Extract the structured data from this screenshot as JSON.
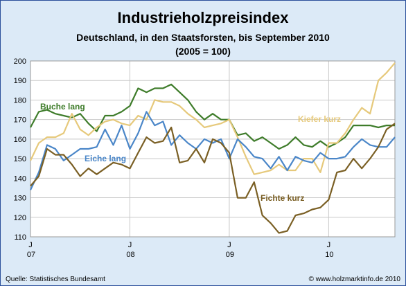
{
  "chart_data": {
    "type": "line",
    "title": "Industrieholzpreisindex",
    "subtitle": "Deutschland, in den Staatsforsten, bis September 2010",
    "subtitle2": "(2005 = 100)",
    "ylim": [
      110,
      200
    ],
    "yticks": [
      110,
      120,
      130,
      140,
      150,
      160,
      170,
      180,
      190,
      200
    ],
    "grid": true,
    "x_month_count": 45,
    "x_ticks": [
      {
        "index": 0,
        "month": "J",
        "year": "07"
      },
      {
        "index": 12,
        "month": "J",
        "year": "08"
      },
      {
        "index": 24,
        "month": "J",
        "year": "09"
      },
      {
        "index": 36,
        "month": "J",
        "year": "10"
      }
    ],
    "series": [
      {
        "name": "Buche lang",
        "color": "#3e7c2a",
        "values": [
          166,
          174,
          175,
          173,
          172,
          171,
          173,
          168,
          164,
          172,
          172,
          174,
          177,
          186,
          184,
          186,
          186,
          188,
          184,
          180,
          174,
          170,
          173,
          170,
          170,
          162,
          163,
          159,
          161,
          158,
          155,
          157,
          161,
          157,
          156,
          159,
          156,
          158,
          161,
          167,
          167,
          167,
          166,
          167,
          167
        ]
      },
      {
        "name": "Kiefer kurz",
        "color": "#e6c97b",
        "values": [
          149,
          158,
          161,
          161,
          163,
          173,
          165,
          162,
          166,
          169,
          170,
          168,
          167,
          172,
          170,
          180,
          179,
          179,
          177,
          173,
          170,
          166,
          167,
          168,
          170,
          161,
          151,
          142,
          143,
          144,
          147,
          144,
          144,
          150,
          150,
          143,
          158,
          158,
          163,
          170,
          176,
          173,
          190,
          194,
          199
        ]
      },
      {
        "name": "Eiche lang",
        "color": "#4a86c8",
        "values": [
          134,
          143,
          157,
          155,
          149,
          152,
          155,
          155,
          156,
          165,
          157,
          167,
          155,
          163,
          174,
          167,
          169,
          157,
          162,
          158,
          155,
          160,
          158,
          160,
          150,
          160,
          156,
          151,
          150,
          145,
          151,
          144,
          151,
          149,
          148,
          153,
          150,
          150,
          151,
          156,
          160,
          157,
          156,
          156,
          161
        ]
      },
      {
        "name": "Fichte kurz",
        "color": "#7a5f24",
        "values": [
          136,
          141,
          155,
          152,
          152,
          147,
          141,
          145,
          142,
          145,
          148,
          147,
          145,
          153,
          161,
          158,
          159,
          166,
          148,
          149,
          155,
          148,
          160,
          158,
          153,
          130,
          130,
          138,
          121,
          117,
          112,
          113,
          121,
          122,
          124,
          125,
          129,
          143,
          144,
          150,
          145,
          150,
          156,
          165,
          168
        ]
      }
    ]
  },
  "footer": {
    "source": "Quelle: Statistisches Bundesamt",
    "copyright": "© www.holzmarktinfo.de 2010"
  }
}
